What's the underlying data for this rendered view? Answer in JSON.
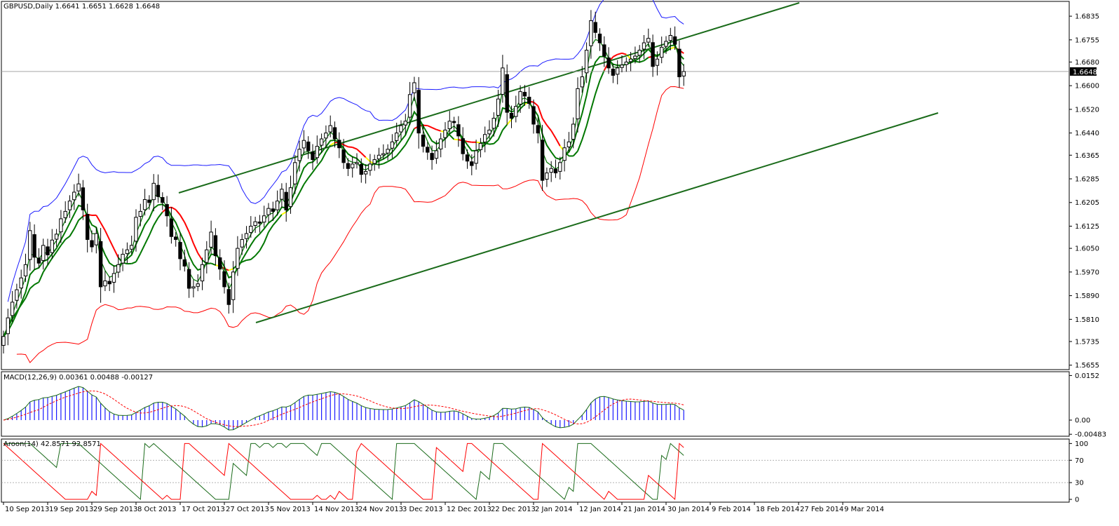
{
  "symbol_header": "GBPUSD,Daily  1.6641 1.6651 1.6628 1.6648",
  "current_price_label": "1.6648",
  "macd_header": "MACD(12,26,9) 0.00361 0.00488 -0.00127",
  "aroon_header": "Aroon(14) 42.8571 92.8571",
  "colors": {
    "background": "#ffffff",
    "frame": "#000000",
    "candle_up_fill": "#ffffff",
    "candle_down_fill": "#000000",
    "bollinger_outer_blue": "#1a1aff",
    "bollinger_outer_red": "#ff0000",
    "ma_green": "#007700",
    "ma_red": "#ff0000",
    "ma_yellow": "#ffff00",
    "trendline": "#1a6b1a",
    "macd_histogram": "#1a1aff",
    "macd_line": "#1a6b1a",
    "macd_signal": "#ff0000",
    "aroon_up": "#1a6b1a",
    "aroon_down": "#ff0000",
    "price_line": "#9a9a9a"
  },
  "chart_data": [
    {
      "type": "candlestick",
      "name": "price",
      "ylim": [
        1.564,
        1.6885
      ],
      "y_ticks": [
        "1.6835",
        "1.6755",
        "1.6680",
        "1.6600",
        "1.6520",
        "1.6440",
        "1.6365",
        "1.6285",
        "1.6205",
        "1.6125",
        "1.6050",
        "1.5970",
        "1.5890",
        "1.5810",
        "1.5735",
        "1.5655"
      ],
      "y_tick_values": [
        1.6835,
        1.6755,
        1.668,
        1.66,
        1.652,
        1.644,
        1.6365,
        1.6285,
        1.6205,
        1.6125,
        1.605,
        1.597,
        1.589,
        1.581,
        1.5735,
        1.5655
      ],
      "x_ticks": [
        "10 Sep 2013",
        "19 Sep 2013",
        "29 Sep 2013",
        "8 Oct 2013",
        "17 Oct 2013",
        "27 Oct 2013",
        "5 Nov 2013",
        "14 Nov 2013",
        "24 Nov 2013",
        "3 Dec 2013",
        "12 Dec 2013",
        "22 Dec 2013",
        "2 Jan 2014",
        "12 Jan 2014",
        "21 Jan 2014",
        "30 Jan 2014",
        "9 Feb 2014",
        "18 Feb 2014",
        "27 Feb 2014",
        "9 Mar 2014"
      ],
      "x_tick_bar_index": [
        0,
        10,
        20,
        30,
        40,
        50,
        60,
        70,
        80,
        90,
        100,
        110,
        120,
        130,
        140,
        150,
        160,
        170,
        180,
        190
      ],
      "close": [
        1.5752,
        1.5815,
        1.5868,
        1.591,
        1.595,
        1.5995,
        1.611,
        1.602,
        1.6,
        1.606,
        1.6028,
        1.6078,
        1.6098,
        1.615,
        1.6175,
        1.621,
        1.624,
        1.6268,
        1.618,
        1.608,
        1.6055,
        1.61,
        1.592,
        1.594,
        1.593,
        1.5965,
        1.5995,
        1.603,
        1.6045,
        1.606,
        1.6155,
        1.6175,
        1.6215,
        1.6205,
        1.627,
        1.6225,
        1.6205,
        1.616,
        1.609,
        1.608,
        1.6015,
        1.599,
        1.5915,
        1.592,
        1.593,
        1.5995,
        1.6045,
        1.6105,
        1.6025,
        1.598,
        1.592,
        1.586,
        1.597,
        1.605,
        1.608,
        1.61,
        1.6125,
        1.614,
        1.6135,
        1.616,
        1.6185,
        1.6175,
        1.621,
        1.625,
        1.618,
        1.6255,
        1.634,
        1.6385,
        1.6415,
        1.638,
        1.635,
        1.6395,
        1.642,
        1.644,
        1.6465,
        1.642,
        1.639,
        1.634,
        1.632,
        1.6335,
        1.634,
        1.63,
        1.631,
        1.6335,
        1.635,
        1.6365,
        1.637,
        1.6385,
        1.641,
        1.644,
        1.6465,
        1.648,
        1.657,
        1.661,
        1.644,
        1.6395,
        1.6375,
        1.635,
        1.638,
        1.642,
        1.645,
        1.648,
        1.6475,
        1.643,
        1.637,
        1.6345,
        1.633,
        1.638,
        1.6405,
        1.6435,
        1.645,
        1.649,
        1.6555,
        1.666,
        1.651,
        1.649,
        1.653,
        1.658,
        1.6565,
        1.654,
        1.647,
        1.644,
        1.628,
        1.6305,
        1.632,
        1.6305,
        1.634,
        1.639,
        1.641,
        1.647,
        1.659,
        1.663,
        1.672,
        1.682,
        1.678,
        1.6745,
        1.67,
        1.666,
        1.6635,
        1.666,
        1.667,
        1.668,
        1.669,
        1.67,
        1.672,
        1.6745,
        1.676,
        1.6665,
        1.669,
        1.673,
        1.675,
        1.677,
        1.674,
        1.663,
        1.6648
      ],
      "open_high_low_note": "candle bodies/wicks drawn from the closes"
    },
    {
      "type": "line",
      "name": "macd",
      "ylim": [
        -0.0055,
        0.0165
      ],
      "y_ticks": [
        "0.0152",
        "0.00",
        "-0.00483"
      ],
      "y_tick_values": [
        0.0152,
        0.0,
        -0.00483
      ]
    },
    {
      "type": "line",
      "name": "aroon",
      "ylim": [
        -5,
        108
      ],
      "y_ticks": [
        "100",
        "70",
        "30",
        "0"
      ],
      "y_tick_values": [
        100,
        70,
        30,
        0
      ]
    }
  ]
}
